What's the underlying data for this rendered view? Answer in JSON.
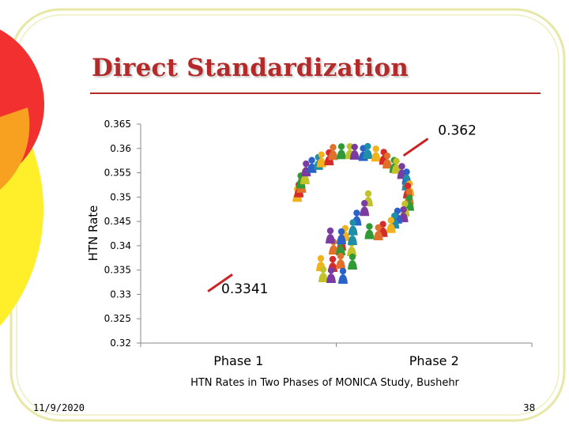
{
  "slide": {
    "title": "Direct Standardization",
    "date": "11/9/2020",
    "page_number": "38"
  },
  "colors": {
    "title": "#b22a2a",
    "line": "#cc2222",
    "frame": "#e7e7a6",
    "circle_red": "#f23030",
    "circle_yellow": "#ffef2a"
  },
  "decoration": {
    "graphic": "question-mark-of-people-figures"
  },
  "chart_data": {
    "type": "line",
    "categories": [
      "Phase 1",
      "Phase 2"
    ],
    "series": [
      {
        "values": [
          0.3341,
          0.362
        ]
      }
    ],
    "data_labels": [
      "0.3341",
      "0.362"
    ],
    "ylabel": "HTN Rate",
    "xlabel": "HTN Rates in Two Phases of MONICA Study, Bushehr",
    "ylim": [
      0.32,
      0.365
    ],
    "yticks": [
      0.32,
      0.325,
      0.33,
      0.335,
      0.34,
      0.345,
      0.35,
      0.355,
      0.36,
      0.365
    ],
    "ytick_labels": [
      "0.32",
      "0.325",
      "0.33",
      "0.335",
      "0.34",
      "0.345",
      "0.35",
      "0.355",
      "0.36",
      "0.365"
    ],
    "grid": false,
    "legend": "none"
  }
}
